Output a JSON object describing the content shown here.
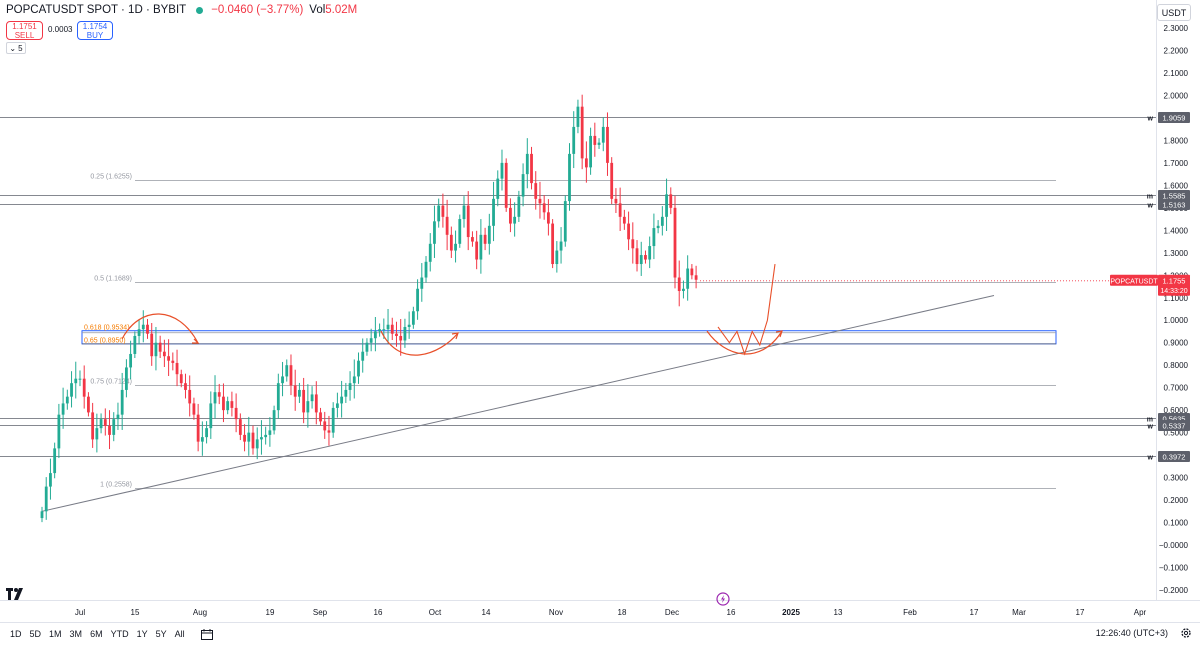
{
  "header": {
    "symbol": "POPCATUSDT SPOT · 1D · BYBIT",
    "change": "−0.0460 (−3.77%)",
    "vol_label": "Vol",
    "vol_value": "5.02M"
  },
  "trade": {
    "sell_price": "1.1751",
    "sell_label": "SELL",
    "spread": "0.0003",
    "buy_price": "1.1754",
    "buy_label": "BUY",
    "quantity": "5"
  },
  "currency": "USDT",
  "colors": {
    "up": "#22ab94",
    "down": "#f23645",
    "fib_orange": "#f57c00",
    "box_blue": "#2962ff",
    "drawing_red": "#e8502a"
  },
  "chart_data": {
    "type": "candlestick",
    "symbol": "POPCATUSDT",
    "ylim": [
      -0.2,
      2.3
    ],
    "y_ticks": [
      "2.3000",
      "2.2000",
      "2.1000",
      "2.0000",
      "1.9000",
      "1.8000",
      "1.7000",
      "1.6000",
      "1.5000",
      "1.4000",
      "1.3000",
      "1.2000",
      "1.1000",
      "1.0000",
      "0.9000",
      "0.8000",
      "0.7000",
      "0.6000",
      "0.5000",
      "0.4000",
      "0.3000",
      "0.2000",
      "0.1000",
      "−0.0000",
      "−0.1000",
      "−0.2000"
    ],
    "x_ticks": [
      "Jul",
      "15",
      "Aug",
      "19",
      "Sep",
      "16",
      "Oct",
      "14",
      "Nov",
      "18",
      "Dec",
      "16",
      "2025",
      "13",
      "Feb",
      "17",
      "Mar",
      "17",
      "Apr"
    ],
    "last_price": {
      "label": "POPCATUSDT",
      "value": 1.1755,
      "value_text": "1.1755",
      "countdown": "14:33:20"
    },
    "horizontal_levels": [
      {
        "price": 1.9059,
        "label": "1.9059",
        "flag": "w"
      },
      {
        "price": 1.5585,
        "label": "1.5585",
        "flag": "m"
      },
      {
        "price": 1.5163,
        "label": "1.5163",
        "flag": "w"
      },
      {
        "price": 0.5635,
        "label": "0.5635",
        "flag": "m"
      },
      {
        "price": 0.5337,
        "label": "0.5337",
        "flag": "w"
      },
      {
        "price": 0.3972,
        "label": "0.3972",
        "flag": "w"
      }
    ],
    "fib_levels": [
      {
        "ratio": "0.25",
        "price": 1.6255,
        "label": "0.25 (1.6255)"
      },
      {
        "ratio": "0.5",
        "price": 1.1689,
        "label": "0.5 (1.1689)"
      },
      {
        "ratio": "0.618",
        "price": 0.9534,
        "label": "0.618 (0.9534)"
      },
      {
        "ratio": "0.65",
        "price": 0.895,
        "label": "0.65 (0.8950)"
      },
      {
        "ratio": "0.75",
        "price": 0.7124,
        "label": "0.75 (0.7124)"
      },
      {
        "ratio": "1",
        "price": 0.2558,
        "label": "1 (0.2558)"
      }
    ],
    "fib_highlight": [
      0.9534,
      0.895
    ],
    "trendline": {
      "start": {
        "date": "2024-06-25",
        "price": 0.15
      },
      "end": {
        "date": "2025-03-10",
        "price": 1.11
      }
    },
    "closes": [
      0.15,
      0.26,
      0.32,
      0.43,
      0.58,
      0.63,
      0.66,
      0.72,
      0.74,
      0.74,
      0.66,
      0.59,
      0.47,
      0.52,
      0.56,
      0.53,
      0.49,
      0.56,
      0.58,
      0.69,
      0.79,
      0.85,
      0.93,
      0.96,
      0.98,
      0.94,
      0.84,
      0.9,
      0.86,
      0.84,
      0.82,
      0.81,
      0.76,
      0.72,
      0.69,
      0.63,
      0.58,
      0.46,
      0.48,
      0.52,
      0.63,
      0.68,
      0.66,
      0.6,
      0.64,
      0.61,
      0.56,
      0.49,
      0.46,
      0.5,
      0.43,
      0.47,
      0.48,
      0.49,
      0.51,
      0.6,
      0.72,
      0.75,
      0.8,
      0.71,
      0.66,
      0.69,
      0.59,
      0.64,
      0.67,
      0.59,
      0.55,
      0.51,
      0.5,
      0.61,
      0.63,
      0.66,
      0.69,
      0.72,
      0.75,
      0.82,
      0.86,
      0.9,
      0.92,
      0.95,
      0.96,
      0.96,
      0.98,
      0.94,
      0.93,
      0.91,
      0.97,
      0.98,
      1.04,
      1.14,
      1.19,
      1.26,
      1.34,
      1.44,
      1.51,
      1.46,
      1.38,
      1.31,
      1.34,
      1.45,
      1.51,
      1.37,
      1.35,
      1.27,
      1.38,
      1.34,
      1.42,
      1.54,
      1.63,
      1.7,
      1.5,
      1.43,
      1.46,
      1.55,
      1.65,
      1.74,
      1.61,
      1.54,
      1.52,
      1.48,
      1.43,
      1.25,
      1.31,
      1.35,
      1.53,
      1.74,
      1.86,
      1.95,
      1.72,
      1.68,
      1.82,
      1.78,
      1.79,
      1.86,
      1.7,
      1.54,
      1.52,
      1.46,
      1.43,
      1.36,
      1.32,
      1.25,
      1.29,
      1.27,
      1.33,
      1.41,
      1.42,
      1.46,
      1.56,
      1.5,
      1.19,
      1.13,
      1.14,
      1.23,
      1.2,
      1.18
    ]
  },
  "drawings": {
    "projection_points": [
      [
        0,
        0.97
      ],
      [
        3,
        0.9
      ],
      [
        5,
        0.95
      ],
      [
        7,
        0.85
      ],
      [
        9,
        0.95
      ],
      [
        11,
        0.89
      ],
      [
        13,
        1.0
      ],
      [
        15,
        1.25
      ]
    ]
  },
  "bottom_bar": {
    "timeframes": [
      "1D",
      "5D",
      "1M",
      "3M",
      "6M",
      "YTD",
      "1Y",
      "5Y",
      "All"
    ],
    "clock": "12:26:40 (UTC+3)"
  }
}
